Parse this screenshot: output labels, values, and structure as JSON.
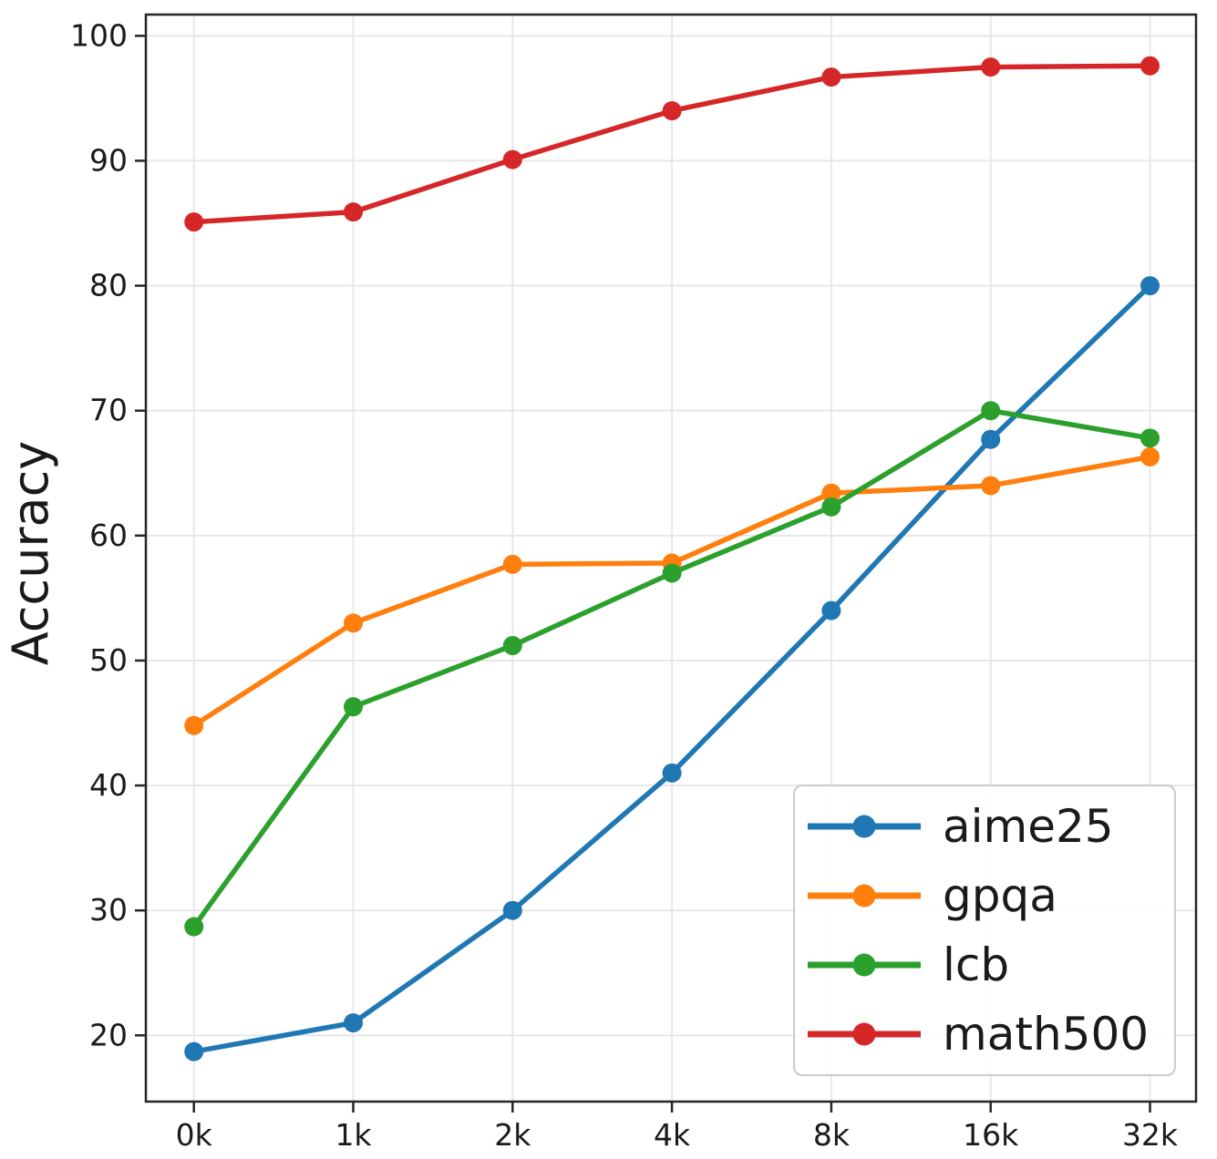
{
  "chart_data": {
    "type": "line",
    "title": "",
    "xlabel": "",
    "ylabel": "Accuracy",
    "categories": [
      "0k",
      "1k",
      "2k",
      "4k",
      "8k",
      "16k",
      "32k"
    ],
    "yticks": [
      20,
      30,
      40,
      50,
      60,
      70,
      80,
      90,
      100
    ],
    "ylim": [
      14.7,
      101.7
    ],
    "grid": true,
    "grid_color": "#e6e6e6",
    "spine_color": "#262626",
    "legend_position": "lower right",
    "series": [
      {
        "name": "aime25",
        "color": "#1f77b4",
        "values": [
          18.7,
          21.0,
          30.0,
          41.0,
          54.0,
          67.7,
          80.0
        ]
      },
      {
        "name": "gpqa",
        "color": "#ff7f0e",
        "values": [
          44.8,
          53.0,
          57.7,
          57.8,
          63.4,
          64.0,
          66.3
        ]
      },
      {
        "name": "lcb",
        "color": "#2ca02c",
        "values": [
          28.7,
          46.3,
          51.2,
          57.0,
          62.3,
          70.0,
          67.8
        ]
      },
      {
        "name": "math500",
        "color": "#d62728",
        "values": [
          85.1,
          85.9,
          90.1,
          94.0,
          96.7,
          97.5,
          97.6
        ]
      }
    ]
  }
}
